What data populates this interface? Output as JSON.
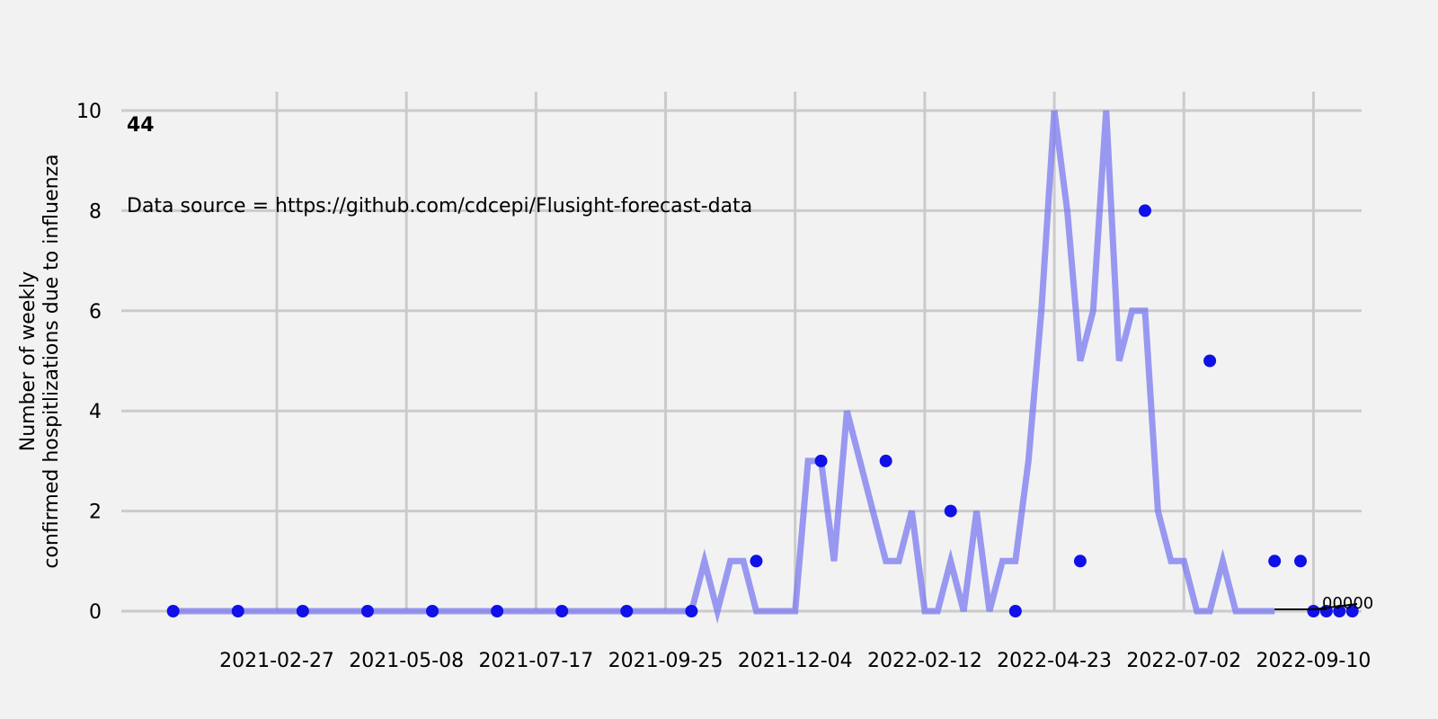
{
  "chart_data": {
    "type": "line",
    "ylabel_line1": "Number of weekly",
    "ylabel_line2": "confirmed hospitlizations due to influenza",
    "panel_label": "44",
    "annotation": "Data source = https://github.com/cdcepi/Flusight-forecast-data",
    "ylim": [
      0,
      10
    ],
    "yticks": [
      0,
      2,
      4,
      6,
      8,
      10
    ],
    "xlim": [
      "2020-12-05",
      "2022-10-06"
    ],
    "xticks": [
      "2021-02-27",
      "2021-05-08",
      "2021-07-17",
      "2021-09-25",
      "2021-12-04",
      "2022-02-12",
      "2022-04-23",
      "2022-07-02",
      "2022-09-10"
    ],
    "grid": true,
    "series": [
      {
        "color": "#7a7af0",
        "x": [
          "2021-01-02",
          "2021-01-09",
          "2021-01-16",
          "2021-01-23",
          "2021-01-30",
          "2021-02-06",
          "2021-02-13",
          "2021-02-20",
          "2021-02-27",
          "2021-03-06",
          "2021-03-13",
          "2021-03-20",
          "2021-03-27",
          "2021-04-03",
          "2021-04-10",
          "2021-04-17",
          "2021-04-24",
          "2021-05-01",
          "2021-05-08",
          "2021-05-15",
          "2021-05-22",
          "2021-05-29",
          "2021-06-05",
          "2021-06-12",
          "2021-06-19",
          "2021-06-26",
          "2021-07-03",
          "2021-07-10",
          "2021-07-17",
          "2021-07-24",
          "2021-07-31",
          "2021-08-07",
          "2021-08-14",
          "2021-08-21",
          "2021-08-28",
          "2021-09-04",
          "2021-09-11",
          "2021-09-18",
          "2021-09-25",
          "2021-10-02",
          "2021-10-09",
          "2021-10-16",
          "2021-10-23",
          "2021-10-30",
          "2021-11-06",
          "2021-11-13",
          "2021-11-20",
          "2021-11-27",
          "2021-12-04",
          "2021-12-11",
          "2021-12-18",
          "2021-12-25",
          "2022-01-01",
          "2022-01-08",
          "2022-01-15",
          "2022-01-22",
          "2022-01-29",
          "2022-02-05",
          "2022-02-12",
          "2022-02-19",
          "2022-02-26",
          "2022-03-05",
          "2022-03-12",
          "2022-03-19",
          "2022-03-26",
          "2022-04-02",
          "2022-04-09",
          "2022-04-16",
          "2022-04-23",
          "2022-04-30",
          "2022-05-07",
          "2022-05-14",
          "2022-05-21",
          "2022-05-28",
          "2022-06-04",
          "2022-06-11",
          "2022-06-18",
          "2022-06-25",
          "2022-07-02",
          "2022-07-09",
          "2022-07-16",
          "2022-07-23",
          "2022-07-30",
          "2022-08-06",
          "2022-08-13",
          "2022-08-20"
        ],
        "y": [
          0,
          0,
          0,
          0,
          0,
          0,
          0,
          0,
          0,
          0,
          0,
          0,
          0,
          0,
          0,
          0,
          0,
          0,
          0,
          0,
          0,
          0,
          0,
          0,
          0,
          0,
          0,
          0,
          0,
          0,
          0,
          0,
          0,
          0,
          0,
          0,
          0,
          0,
          0,
          0,
          0,
          1,
          0,
          1,
          1,
          0,
          0,
          0,
          0,
          3,
          3,
          1,
          4,
          3,
          2,
          1,
          1,
          2,
          0,
          0,
          1,
          0,
          2,
          0,
          1,
          1,
          3,
          6,
          10,
          8,
          5,
          6,
          10,
          5,
          6,
          6,
          2,
          1,
          1,
          0,
          0,
          1,
          0,
          0,
          0,
          0
        ]
      }
    ],
    "markers": {
      "color": "#1010e8",
      "x": [
        "2021-01-02",
        "2021-02-06",
        "2021-03-13",
        "2021-04-17",
        "2021-05-22",
        "2021-06-26",
        "2021-07-31",
        "2021-09-04",
        "2021-10-09",
        "2021-11-13",
        "2021-12-18",
        "2022-01-22",
        "2022-02-26",
        "2022-04-02",
        "2022-05-07",
        "2022-06-11",
        "2022-07-16",
        "2022-08-20",
        "2022-09-03",
        "2022-09-10",
        "2022-09-17",
        "2022-09-24",
        "2022-10-01"
      ],
      "y": [
        0,
        0,
        0,
        0,
        0,
        0,
        0,
        0,
        0,
        1,
        3,
        3,
        2,
        0,
        1,
        8,
        5,
        1,
        1,
        0,
        0,
        0,
        0
      ]
    },
    "forecast": {
      "x": [
        "2022-08-20",
        "2022-08-27",
        "2022-09-03",
        "2022-09-10",
        "2022-09-17"
      ],
      "y": [
        0,
        0,
        0,
        0,
        0
      ],
      "labels": [
        "0",
        "0",
        "0",
        "0",
        "0"
      ]
    }
  }
}
